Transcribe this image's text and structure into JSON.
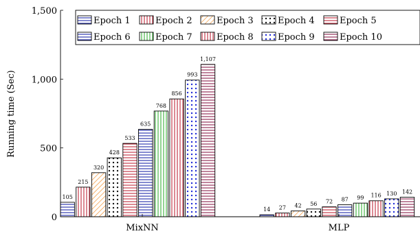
{
  "chart_data": {
    "type": "bar",
    "title": "",
    "xlabel": "",
    "ylabel": "Running time (Sec)",
    "ylim": [
      0,
      1500
    ],
    "yticks": [
      0,
      500,
      1000,
      1500
    ],
    "ytick_labels": [
      "0",
      "500",
      "1,000",
      "1,500"
    ],
    "categories": [
      "MixNN",
      "MLP"
    ],
    "legend_placement": "top-right",
    "grid": false,
    "series": [
      {
        "name": "Epoch 1",
        "values": [
          105,
          14
        ],
        "value_labels": [
          "105",
          "14"
        ],
        "color": "#1f2aa8",
        "pattern": "hlines"
      },
      {
        "name": "Epoch 2",
        "values": [
          215,
          27
        ],
        "value_labels": [
          "215",
          "27"
        ],
        "color": "#c0283a",
        "pattern": "vlines"
      },
      {
        "name": "Epoch 3",
        "values": [
          320,
          42
        ],
        "value_labels": [
          "320",
          "42"
        ],
        "color": "#f08a24",
        "pattern": "diag"
      },
      {
        "name": "Epoch 4",
        "values": [
          428,
          56
        ],
        "value_labels": [
          "428",
          "56"
        ],
        "color": "#111111",
        "pattern": "dots"
      },
      {
        "name": "Epoch 5",
        "values": [
          533,
          72
        ],
        "value_labels": [
          "533",
          "72"
        ],
        "color": "#c0283a",
        "pattern": "hlines"
      },
      {
        "name": "Epoch 6",
        "values": [
          635,
          87
        ],
        "value_labels": [
          "635",
          "87"
        ],
        "color": "#1f2aa8",
        "pattern": "hlines"
      },
      {
        "name": "Epoch 7",
        "values": [
          768,
          99
        ],
        "value_labels": [
          "768",
          "99"
        ],
        "color": "#3ab03a",
        "pattern": "vlines"
      },
      {
        "name": "Epoch 8",
        "values": [
          856,
          116
        ],
        "value_labels": [
          "856",
          "116"
        ],
        "color": "#c0283a",
        "pattern": "vlines"
      },
      {
        "name": "Epoch 9",
        "values": [
          993,
          130
        ],
        "value_labels": [
          "993",
          "130"
        ],
        "color": "#1f2ad8",
        "pattern": "dots"
      },
      {
        "name": "Epoch 10",
        "values": [
          1107,
          142
        ],
        "value_labels": [
          "1,107",
          "142"
        ],
        "color": "#8a1f4a",
        "pattern": "hlines"
      }
    ]
  }
}
